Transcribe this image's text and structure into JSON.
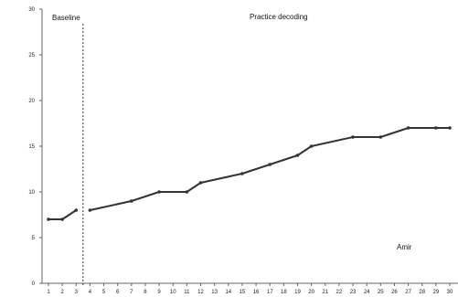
{
  "chart_data": {
    "type": "line",
    "title": "",
    "xlabel": "",
    "ylabel": "",
    "ylim": [
      0,
      30
    ],
    "xlim": [
      1,
      30
    ],
    "yticks": [
      0,
      5,
      10,
      15,
      20,
      25,
      30
    ],
    "xticks": [
      1,
      2,
      3,
      4,
      5,
      6,
      7,
      8,
      9,
      10,
      11,
      12,
      13,
      14,
      15,
      16,
      17,
      18,
      19,
      20,
      21,
      22,
      23,
      24,
      25,
      26,
      27,
      28,
      29,
      30
    ],
    "grid": false,
    "legend": false,
    "phase_change_x": 3.5,
    "phases": [
      {
        "label": "Baseline"
      },
      {
        "label": "Practice decoding"
      }
    ],
    "annotation": "Amir",
    "series": [
      {
        "color": "#333333",
        "segments": [
          {
            "x": [
              1,
              2,
              3
            ],
            "y": [
              7,
              7,
              8
            ]
          },
          {
            "x": [
              4,
              7,
              9,
              11,
              12,
              15,
              17,
              19,
              20,
              23,
              25,
              27,
              29,
              30
            ],
            "y": [
              8,
              9,
              10,
              10,
              11,
              12,
              13,
              14,
              15,
              16,
              16,
              17,
              17,
              17
            ]
          }
        ]
      }
    ]
  }
}
